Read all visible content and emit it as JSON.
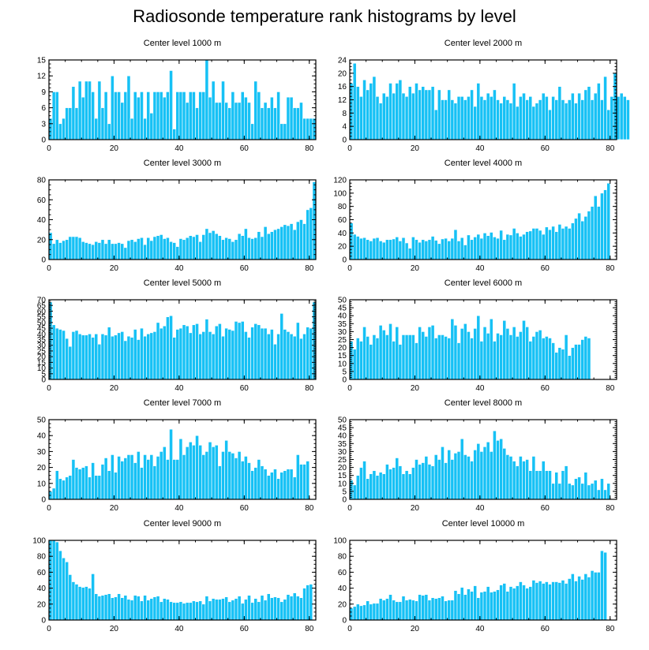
{
  "figure_title": "Radiosonde temperature rank histograms by level",
  "bar_color": "#16c1f5",
  "chart_data": [
    {
      "type": "bar",
      "title": "Center level 1000 m",
      "xlim": [
        0,
        82
      ],
      "ylim": [
        0,
        15
      ],
      "xticks": [
        0,
        20,
        40,
        60,
        80
      ],
      "yticks": [
        0,
        3,
        6,
        9,
        12,
        15
      ],
      "values": [
        4,
        9,
        9,
        3,
        4,
        6,
        6,
        10,
        6,
        11,
        8,
        11,
        11,
        9,
        4,
        11,
        6,
        9,
        3,
        12,
        9,
        9,
        7,
        9,
        12,
        4,
        9,
        8,
        9,
        4,
        9,
        5,
        9,
        9,
        9,
        8,
        9,
        13,
        2,
        9,
        9,
        9,
        7,
        9,
        9,
        6,
        9,
        9,
        15,
        8,
        11,
        7,
        7,
        11,
        7,
        6,
        9,
        7,
        7,
        9,
        8,
        7,
        3,
        11,
        9,
        6,
        7,
        6,
        8,
        6,
        9,
        3,
        3,
        8,
        8,
        6,
        6,
        7,
        4,
        4,
        4,
        4
      ]
    },
    {
      "type": "bar",
      "title": "Center level 2000 m",
      "xlim": [
        0,
        82
      ],
      "ylim": [
        0,
        24
      ],
      "xticks": [
        0,
        20,
        40,
        60,
        80
      ],
      "yticks": [
        0,
        4,
        8,
        12,
        16,
        20,
        24
      ],
      "values": [
        17,
        23,
        16,
        13,
        18,
        15,
        17,
        19,
        13,
        11,
        14,
        13,
        17,
        14,
        17,
        18,
        14,
        13,
        16,
        14,
        17,
        15,
        16,
        15,
        15,
        16,
        9,
        15,
        12,
        12,
        15,
        12,
        11,
        13,
        13,
        12,
        13,
        15,
        10,
        17,
        13,
        12,
        14,
        13,
        15,
        12,
        11,
        13,
        12,
        11,
        17,
        10,
        13,
        14,
        12,
        13,
        10,
        11,
        12,
        14,
        13,
        9,
        13,
        12,
        16,
        12,
        11,
        12,
        14,
        11,
        14,
        12,
        15,
        16,
        12,
        14,
        17,
        12,
        19,
        9,
        13,
        20,
        13,
        14,
        13,
        12
      ]
    },
    {
      "type": "bar",
      "title": "Center level 3000 m",
      "xlim": [
        0,
        82
      ],
      "ylim": [
        0,
        80
      ],
      "xticks": [
        0,
        20,
        40,
        60,
        80
      ],
      "yticks": [
        0,
        20,
        40,
        60,
        80
      ],
      "values": [
        27,
        16,
        20,
        17,
        19,
        20,
        23,
        23,
        23,
        22,
        18,
        17,
        16,
        15,
        18,
        17,
        20,
        16,
        20,
        16,
        16,
        17,
        16,
        12,
        19,
        20,
        18,
        21,
        22,
        15,
        22,
        19,
        23,
        24,
        25,
        21,
        22,
        18,
        17,
        13,
        21,
        20,
        22,
        24,
        23,
        25,
        18,
        25,
        31,
        27,
        29,
        26,
        24,
        20,
        22,
        21,
        18,
        20,
        26,
        24,
        31,
        22,
        21,
        22,
        28,
        23,
        33,
        26,
        28,
        30,
        31,
        33,
        35,
        34,
        36,
        30,
        38,
        40,
        36,
        50,
        52,
        78
      ]
    },
    {
      "type": "bar",
      "title": "Center level 4000 m",
      "xlim": [
        0,
        82
      ],
      "ylim": [
        0,
        120
      ],
      "xticks": [
        0,
        20,
        40,
        60,
        80
      ],
      "yticks": [
        0,
        20,
        40,
        60,
        80,
        100,
        120
      ],
      "values": [
        55,
        38,
        35,
        32,
        33,
        30,
        28,
        32,
        33,
        28,
        26,
        30,
        30,
        31,
        34,
        28,
        33,
        25,
        17,
        34,
        30,
        26,
        30,
        28,
        30,
        35,
        29,
        24,
        31,
        32,
        28,
        32,
        45,
        28,
        33,
        22,
        37,
        30,
        34,
        38,
        32,
        40,
        36,
        41,
        34,
        32,
        44,
        30,
        38,
        37,
        47,
        40,
        35,
        38,
        42,
        43,
        47,
        47,
        44,
        38,
        49,
        45,
        50,
        42,
        53,
        47,
        50,
        47,
        55,
        62,
        70,
        58,
        65,
        73,
        80,
        96,
        80,
        100,
        105,
        115
      ]
    },
    {
      "type": "bar",
      "title": "Center level 5000 m",
      "xlim": [
        0,
        82
      ],
      "ylim": [
        0,
        70
      ],
      "xticks": [
        0,
        20,
        40,
        60,
        80
      ],
      "yticks": [
        0,
        5,
        10,
        15,
        20,
        25,
        30,
        35,
        40,
        45,
        50,
        55,
        60,
        65,
        70
      ],
      "values": [
        68,
        48,
        45,
        44,
        43,
        36,
        29,
        42,
        43,
        40,
        39,
        39,
        40,
        37,
        40,
        31,
        40,
        39,
        46,
        38,
        39,
        41,
        42,
        34,
        38,
        37,
        44,
        35,
        45,
        38,
        40,
        41,
        42,
        50,
        45,
        47,
        55,
        56,
        37,
        44,
        45,
        48,
        47,
        41,
        48,
        49,
        40,
        42,
        53,
        42,
        40,
        47,
        49,
        38,
        45,
        44,
        43,
        51,
        50,
        51,
        42,
        37,
        46,
        49,
        48,
        45,
        45,
        40,
        44,
        31,
        40,
        58,
        44,
        42,
        40,
        38,
        50,
        36,
        40,
        46,
        45,
        68
      ]
    },
    {
      "type": "bar",
      "title": "Center level 6000 m",
      "xlim": [
        0,
        82
      ],
      "ylim": [
        0,
        50
      ],
      "xticks": [
        0,
        20,
        40,
        60,
        80
      ],
      "yticks": [
        0,
        5,
        10,
        15,
        20,
        25,
        30,
        35,
        40,
        45,
        50
      ],
      "values": [
        24,
        19,
        26,
        24,
        33,
        27,
        22,
        28,
        26,
        34,
        31,
        28,
        35,
        24,
        33,
        22,
        28,
        28,
        28,
        28,
        23,
        33,
        30,
        27,
        33,
        34,
        26,
        28,
        28,
        27,
        26,
        38,
        34,
        23,
        32,
        35,
        30,
        26,
        32,
        40,
        24,
        33,
        29,
        38,
        24,
        29,
        28,
        37,
        32,
        28,
        33,
        27,
        30,
        37,
        33,
        24,
        27,
        30,
        31,
        26,
        27,
        26,
        23,
        17,
        20,
        19,
        28,
        15,
        20,
        22,
        22,
        25,
        27,
        26
      ]
    },
    {
      "type": "bar",
      "title": "Center level 7000 m",
      "xlim": [
        0,
        82
      ],
      "ylim": [
        0,
        50
      ],
      "xticks": [
        0,
        20,
        40,
        60,
        80
      ],
      "yticks": [
        0,
        10,
        20,
        30,
        40,
        50
      ],
      "values": [
        5,
        7,
        18,
        13,
        12,
        14,
        15,
        25,
        20,
        19,
        20,
        21,
        14,
        23,
        15,
        15,
        22,
        26,
        18,
        28,
        17,
        27,
        24,
        26,
        28,
        28,
        23,
        30,
        20,
        28,
        25,
        28,
        21,
        27,
        30,
        33,
        25,
        44,
        25,
        25,
        38,
        28,
        33,
        36,
        34,
        40,
        34,
        28,
        30,
        36,
        33,
        34,
        21,
        30,
        37,
        30,
        29,
        26,
        30,
        24,
        27,
        23,
        18,
        20,
        25,
        21,
        19,
        15,
        17,
        19,
        13,
        17,
        18,
        19,
        19,
        14,
        28,
        22,
        22,
        24
      ]
    },
    {
      "type": "bar",
      "title": "Center level 8000 m",
      "xlim": [
        0,
        82
      ],
      "ylim": [
        0,
        50
      ],
      "xticks": [
        0,
        20,
        40,
        60,
        80
      ],
      "yticks": [
        0,
        5,
        10,
        15,
        20,
        25,
        30,
        35,
        40,
        45,
        50
      ],
      "values": [
        12,
        9,
        15,
        20,
        24,
        13,
        16,
        18,
        15,
        17,
        16,
        22,
        19,
        20,
        26,
        21,
        16,
        18,
        16,
        20,
        25,
        22,
        23,
        27,
        22,
        21,
        28,
        25,
        33,
        23,
        31,
        25,
        29,
        30,
        38,
        28,
        27,
        24,
        31,
        35,
        30,
        33,
        36,
        30,
        43,
        37,
        38,
        32,
        28,
        27,
        24,
        21,
        27,
        24,
        25,
        18,
        27,
        18,
        18,
        24,
        18,
        18,
        10,
        17,
        10,
        18,
        21,
        10,
        9,
        13,
        14,
        10,
        17,
        9,
        10,
        12,
        6,
        13,
        6,
        10
      ]
    },
    {
      "type": "bar",
      "title": "Center level 9000 m",
      "xlim": [
        0,
        82
      ],
      "ylim": [
        0,
        100
      ],
      "xticks": [
        0,
        20,
        40,
        60,
        80
      ],
      "yticks": [
        0,
        20,
        40,
        60,
        80,
        100
      ],
      "values": [
        100,
        100,
        98,
        87,
        78,
        73,
        57,
        48,
        45,
        42,
        41,
        42,
        40,
        58,
        33,
        30,
        31,
        32,
        33,
        28,
        29,
        33,
        28,
        31,
        26,
        25,
        31,
        30,
        24,
        31,
        25,
        27,
        29,
        30,
        23,
        27,
        26,
        23,
        22,
        22,
        23,
        21,
        22,
        22,
        24,
        23,
        24,
        20,
        30,
        24,
        27,
        26,
        26,
        27,
        29,
        23,
        25,
        27,
        30,
        21,
        26,
        31,
        22,
        27,
        23,
        31,
        25,
        33,
        28,
        29,
        28,
        23,
        26,
        32,
        30,
        34,
        30,
        28,
        40,
        44,
        45
      ]
    },
    {
      "type": "bar",
      "title": "Center level 10000 m",
      "xlim": [
        0,
        82
      ],
      "ylim": [
        0,
        100
      ],
      "xticks": [
        0,
        20,
        40,
        60,
        80
      ],
      "yticks": [
        0,
        20,
        40,
        60,
        80,
        100
      ],
      "values": [
        15,
        17,
        20,
        18,
        19,
        24,
        20,
        21,
        21,
        27,
        25,
        27,
        32,
        25,
        23,
        23,
        30,
        25,
        26,
        25,
        24,
        32,
        31,
        32,
        25,
        28,
        27,
        28,
        30,
        24,
        25,
        25,
        37,
        33,
        41,
        32,
        39,
        36,
        43,
        28,
        35,
        36,
        42,
        35,
        36,
        38,
        44,
        46,
        36,
        42,
        40,
        43,
        48,
        44,
        40,
        42,
        50,
        47,
        49,
        46,
        48,
        45,
        48,
        48,
        47,
        50,
        46,
        52,
        58,
        49,
        55,
        51,
        58,
        54,
        62,
        60,
        60,
        87,
        85
      ]
    }
  ]
}
